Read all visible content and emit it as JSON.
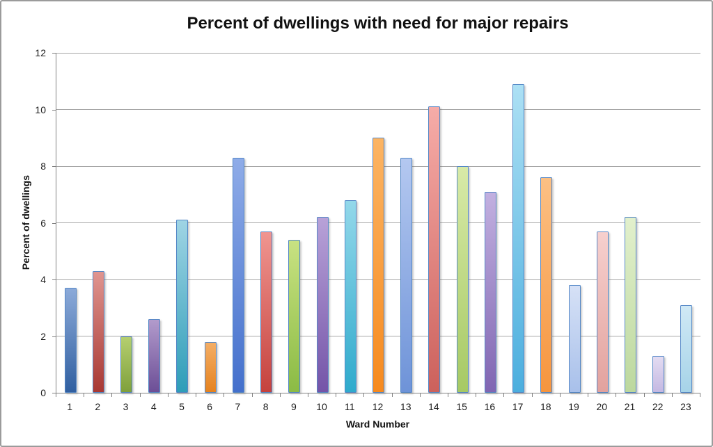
{
  "chart_data": {
    "type": "bar",
    "title": "Percent of dwellings with need for major repairs",
    "xlabel": "Ward Number",
    "ylabel": "Percent of dwellings",
    "categories": [
      "1",
      "2",
      "3",
      "4",
      "5",
      "6",
      "7",
      "8",
      "9",
      "10",
      "11",
      "12",
      "13",
      "14",
      "15",
      "16",
      "17",
      "18",
      "19",
      "20",
      "21",
      "22",
      "23"
    ],
    "values": [
      3.7,
      4.3,
      2.0,
      2.6,
      6.1,
      1.8,
      8.3,
      5.7,
      5.4,
      6.2,
      6.8,
      9.0,
      8.3,
      10.1,
      8.0,
      7.1,
      10.9,
      7.6,
      3.8,
      5.7,
      6.2,
      1.3,
      3.1
    ],
    "ylim": [
      0,
      12
    ],
    "yticks": [
      0,
      2,
      4,
      6,
      8,
      10,
      12
    ],
    "grid": true,
    "legend": false,
    "bar_gradients": [
      {
        "top": "#8caad9",
        "bottom": "#305fa0"
      },
      {
        "top": "#e09590",
        "bottom": "#a83833"
      },
      {
        "top": "#b5cf6f",
        "bottom": "#7fa03c"
      },
      {
        "top": "#b29bcc",
        "bottom": "#6c4e96"
      },
      {
        "top": "#9fd4e4",
        "bottom": "#2e9db8"
      },
      {
        "top": "#f4ae66",
        "bottom": "#e5821f"
      },
      {
        "top": "#8face8",
        "bottom": "#4470cc"
      },
      {
        "top": "#f09590",
        "bottom": "#c5423e"
      },
      {
        "top": "#c8e282",
        "bottom": "#8bbb44"
      },
      {
        "top": "#b8a2d8",
        "bottom": "#7454a8"
      },
      {
        "top": "#93d8ea",
        "bottom": "#2faacc"
      },
      {
        "top": "#fcb463",
        "bottom": "#f68a1f"
      },
      {
        "top": "#b4c8f0",
        "bottom": "#6e93d8"
      },
      {
        "top": "#f6aca8",
        "bottom": "#cc615c"
      },
      {
        "top": "#d8eaa8",
        "bottom": "#a6c964"
      },
      {
        "top": "#c2b0e0",
        "bottom": "#8066b2"
      },
      {
        "top": "#ace0f4",
        "bottom": "#4caede"
      },
      {
        "top": "#fcc084",
        "bottom": "#f6953e"
      },
      {
        "top": "#d6e1f6",
        "bottom": "#a8c0ea"
      },
      {
        "top": "#f6d0ce",
        "bottom": "#e2a29e"
      },
      {
        "top": "#e2f0cc",
        "bottom": "#bcd89e"
      },
      {
        "top": "#e4dcf2",
        "bottom": "#c4b8e2"
      },
      {
        "top": "#d0e9f5",
        "bottom": "#a6d3e8"
      }
    ],
    "bar_border_color": "#5588c7",
    "gridline_color": "#a6a6a6",
    "axis_color": "#808080",
    "background_color": "#ffffff",
    "frame_border_color": "#9b9b9b"
  }
}
